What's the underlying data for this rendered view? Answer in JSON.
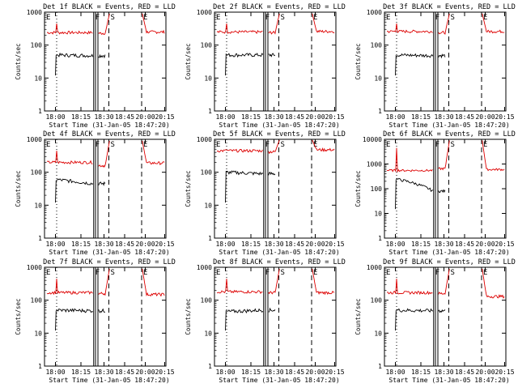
{
  "chart_data": [
    {
      "type": "line",
      "title": "Det 1f BLACK = Events, RED = LLD",
      "xlabel": "Start Time (31-Jan-05 18:47:20)",
      "ylabel": "Counts/sec",
      "yscale": "log",
      "ylim": [
        1,
        1000
      ],
      "x_tick_labels": [
        "18:00",
        "18:15",
        "18:30",
        "18:45",
        "20:00",
        "20:15"
      ],
      "y_tick_labels": [
        "1",
        "10",
        "100",
        "1000"
      ],
      "markers": [
        "E",
        "F",
        "S",
        "E"
      ],
      "series": [
        {
          "color": "#dd0000",
          "level_start": 240,
          "level_end": 230,
          "level_post": 250,
          "spike": 900
        },
        {
          "color": "#000000",
          "level_start": 50,
          "level_end": 48,
          "low": 12
        }
      ]
    },
    {
      "type": "line",
      "title": "Det 2f BLACK = Events, RED = LLD",
      "xlabel": "Start Time (31-Jan-05 18:47:20)",
      "ylabel": "Counts/sec",
      "yscale": "log",
      "ylim": [
        1,
        1000
      ],
      "x_tick_labels": [
        "18:00",
        "18:15",
        "18:30",
        "18:45",
        "20:00",
        "20:15"
      ],
      "y_tick_labels": [
        "1",
        "10",
        "100",
        "1000"
      ],
      "markers": [
        "E",
        "F",
        "S",
        "E"
      ],
      "series": [
        {
          "color": "#dd0000",
          "level_start": 250,
          "level_end": 240,
          "level_post": 260,
          "spike": 900
        },
        {
          "color": "#000000",
          "level_start": 50,
          "level_end": 50,
          "low": 12
        }
      ]
    },
    {
      "type": "line",
      "title": "Det 3f BLACK = Events, RED = LLD",
      "xlabel": "Start Time (31-Jan-05 18:47:20)",
      "ylabel": "Counts/sec",
      "yscale": "log",
      "ylim": [
        1,
        1000
      ],
      "x_tick_labels": [
        "18:00",
        "18:15",
        "18:30",
        "18:45",
        "20:00",
        "20:15"
      ],
      "y_tick_labels": [
        "1",
        "10",
        "100",
        "1000"
      ],
      "markers": [
        "E",
        "F",
        "S",
        "E"
      ],
      "series": [
        {
          "color": "#dd0000",
          "level_start": 260,
          "level_end": 240,
          "level_post": 260,
          "spike": 900
        },
        {
          "color": "#000000",
          "level_start": 50,
          "level_end": 48,
          "low": 12
        }
      ]
    },
    {
      "type": "line",
      "title": "Det 4f BLACK = Events, RED = LLD",
      "xlabel": "Start Time (31-Jan-05 18:47:20)",
      "ylabel": "Counts/sec",
      "yscale": "log",
      "ylim": [
        1,
        1000
      ],
      "x_tick_labels": [
        "18:00",
        "18:15",
        "18:30",
        "18:45",
        "20:00",
        "20:15"
      ],
      "y_tick_labels": [
        "1",
        "10",
        "100",
        "1000"
      ],
      "markers": [
        "E",
        "F",
        "S",
        "E"
      ],
      "series": [
        {
          "color": "#dd0000",
          "level_start": 200,
          "level_end": 160,
          "level_post": 190,
          "spike": 900
        },
        {
          "color": "#000000",
          "level_start": 60,
          "level_end": 45,
          "low": 12
        }
      ]
    },
    {
      "type": "line",
      "title": "Det 5f BLACK = Events, RED = LLD",
      "xlabel": "Start Time (31-Jan-05 18:47:20)",
      "ylabel": "Counts/sec",
      "yscale": "log",
      "ylim": [
        1,
        1000
      ],
      "x_tick_labels": [
        "18:00",
        "18:15",
        "18:30",
        "18:45",
        "20:00",
        "20:15"
      ],
      "y_tick_labels": [
        "1",
        "10",
        "100",
        "1000"
      ],
      "markers": [
        "E",
        "F",
        "S",
        "E"
      ],
      "series": [
        {
          "color": "#dd0000",
          "level_start": 450,
          "level_end": 420,
          "level_post": 480,
          "spike": 950
        },
        {
          "color": "#000000",
          "level_start": 100,
          "level_end": 90,
          "low": 12
        }
      ]
    },
    {
      "type": "line",
      "title": "Det 6f BLACK = Events, RED = LLD",
      "xlabel": "Start Time (31-Jan-05 18:47:20)",
      "ylabel": "Counts/sec",
      "yscale": "log",
      "ylim": [
        1,
        10000
      ],
      "x_tick_labels": [
        "18:00",
        "18:15",
        "18:30",
        "18:45",
        "20:00",
        "20:15"
      ],
      "y_tick_labels": [
        "1",
        "10",
        "100",
        "1000",
        "10000"
      ],
      "markers": [
        "E",
        "F",
        "S",
        "E"
      ],
      "series": [
        {
          "color": "#dd0000",
          "level_start": 550,
          "level_end": 650,
          "level_post": 600,
          "spike": 9000
        },
        {
          "color": "#000000",
          "level_start": 250,
          "level_end": 80,
          "low": 15
        }
      ]
    },
    {
      "type": "line",
      "title": "Det 7f BLACK = Events, RED = LLD",
      "xlabel": "Start Time (31-Jan-05 18:47:20)",
      "ylabel": "Counts/sec",
      "yscale": "log",
      "ylim": [
        1,
        1000
      ],
      "x_tick_labels": [
        "18:00",
        "18:15",
        "18:30",
        "18:45",
        "20:00",
        "20:15"
      ],
      "y_tick_labels": [
        "1",
        "10",
        "100",
        "1000"
      ],
      "markers": [
        "E",
        "F",
        "S",
        "E"
      ],
      "series": [
        {
          "color": "#dd0000",
          "level_start": 170,
          "level_end": 160,
          "level_post": 150,
          "spike": 900
        },
        {
          "color": "#000000",
          "level_start": 50,
          "level_end": 48,
          "low": 12
        }
      ]
    },
    {
      "type": "line",
      "title": "Det 8f BLACK = Events, RED = LLD",
      "xlabel": "Start Time (31-Jan-05 18:47:20)",
      "ylabel": "Counts/sec",
      "yscale": "log",
      "ylim": [
        1,
        1000
      ],
      "x_tick_labels": [
        "18:00",
        "18:15",
        "18:30",
        "18:45",
        "20:00",
        "20:15"
      ],
      "y_tick_labels": [
        "1",
        "10",
        "100",
        "1000"
      ],
      "markers": [
        "E",
        "F",
        "S",
        "E"
      ],
      "series": [
        {
          "color": "#dd0000",
          "level_start": 180,
          "level_end": 170,
          "level_post": 170,
          "spike": 900
        },
        {
          "color": "#000000",
          "level_start": 45,
          "level_end": 50,
          "low": 12
        }
      ]
    },
    {
      "type": "line",
      "title": "Det 9f BLACK = Events, RED = LLD",
      "xlabel": "Start Time (31-Jan-05 18:47:20)",
      "ylabel": "Counts/sec",
      "yscale": "log",
      "ylim": [
        1,
        1000
      ],
      "x_tick_labels": [
        "18:00",
        "18:15",
        "18:30",
        "18:45",
        "20:00",
        "20:15"
      ],
      "y_tick_labels": [
        "1",
        "10",
        "100",
        "1000"
      ],
      "markers": [
        "E",
        "F",
        "S",
        "E"
      ],
      "series": [
        {
          "color": "#dd0000",
          "level_start": 170,
          "level_end": 160,
          "level_post": 130,
          "spike": 900
        },
        {
          "color": "#000000",
          "level_start": 50,
          "level_end": 48,
          "low": 12
        }
      ]
    }
  ]
}
